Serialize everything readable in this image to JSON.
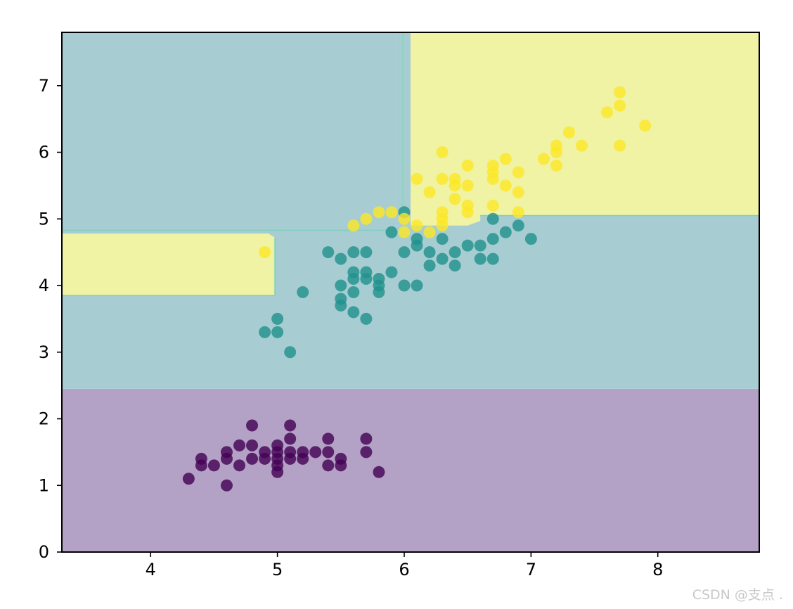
{
  "chart_data": {
    "type": "scatter",
    "title": "",
    "xlabel": "",
    "ylabel": "",
    "xlim": [
      3.3,
      8.8
    ],
    "ylim": [
      0,
      7.8
    ],
    "x_ticks": [
      4,
      5,
      6,
      7,
      8
    ],
    "y_ticks": [
      0,
      1,
      2,
      3,
      4,
      5,
      6,
      7
    ],
    "grid": false,
    "legend": "none",
    "colors": {
      "class0": "#440154",
      "class1": "#21918c",
      "class2": "#fde725",
      "region0": "#b4a2c6",
      "region1": "#a7cdd2",
      "region2": "#f0f2a4"
    },
    "decision_regions": [
      {
        "class": 0,
        "description": "y < 2.45"
      },
      {
        "class": 1,
        "description": "2.45 <= y <= 5.05 (excluding notch)"
      },
      {
        "class": 2,
        "description": "y > 5.05 plus x < 4.95 for y in [3.85, 4.8]; narrow class-1 strip near x = 6"
      }
    ],
    "series": [
      {
        "class": 0,
        "points": [
          [
            4.3,
            1.1
          ],
          [
            4.4,
            1.3
          ],
          [
            4.4,
            1.4
          ],
          [
            4.5,
            1.3
          ],
          [
            4.6,
            1.0
          ],
          [
            4.6,
            1.4
          ],
          [
            4.6,
            1.5
          ],
          [
            4.7,
            1.3
          ],
          [
            4.7,
            1.6
          ],
          [
            4.8,
            1.4
          ],
          [
            4.8,
            1.6
          ],
          [
            4.8,
            1.9
          ],
          [
            4.9,
            1.4
          ],
          [
            4.9,
            1.5
          ],
          [
            5.0,
            1.2
          ],
          [
            5.0,
            1.3
          ],
          [
            5.0,
            1.4
          ],
          [
            5.0,
            1.5
          ],
          [
            5.0,
            1.6
          ],
          [
            5.1,
            1.4
          ],
          [
            5.1,
            1.5
          ],
          [
            5.1,
            1.7
          ],
          [
            5.1,
            1.9
          ],
          [
            5.2,
            1.4
          ],
          [
            5.2,
            1.5
          ],
          [
            5.3,
            1.5
          ],
          [
            5.4,
            1.3
          ],
          [
            5.4,
            1.5
          ],
          [
            5.4,
            1.7
          ],
          [
            5.5,
            1.3
          ],
          [
            5.5,
            1.4
          ],
          [
            5.7,
            1.5
          ],
          [
            5.7,
            1.7
          ],
          [
            5.8,
            1.2
          ]
        ]
      },
      {
        "class": 1,
        "points": [
          [
            4.9,
            3.3
          ],
          [
            5.0,
            3.3
          ],
          [
            5.0,
            3.5
          ],
          [
            5.1,
            3.0
          ],
          [
            5.2,
            3.9
          ],
          [
            5.4,
            4.5
          ],
          [
            5.5,
            3.7
          ],
          [
            5.5,
            3.8
          ],
          [
            5.5,
            4.0
          ],
          [
            5.5,
            4.4
          ],
          [
            5.6,
            3.6
          ],
          [
            5.6,
            3.9
          ],
          [
            5.6,
            4.1
          ],
          [
            5.6,
            4.2
          ],
          [
            5.6,
            4.5
          ],
          [
            5.7,
            3.5
          ],
          [
            5.7,
            4.1
          ],
          [
            5.7,
            4.2
          ],
          [
            5.7,
            4.5
          ],
          [
            5.8,
            3.9
          ],
          [
            5.8,
            4.0
          ],
          [
            5.8,
            4.1
          ],
          [
            5.9,
            4.2
          ],
          [
            5.9,
            4.8
          ],
          [
            6.0,
            4.0
          ],
          [
            6.0,
            4.5
          ],
          [
            6.0,
            5.1
          ],
          [
            6.1,
            4.0
          ],
          [
            6.1,
            4.6
          ],
          [
            6.1,
            4.7
          ],
          [
            6.2,
            4.3
          ],
          [
            6.2,
            4.5
          ],
          [
            6.3,
            4.4
          ],
          [
            6.3,
            4.7
          ],
          [
            6.4,
            4.3
          ],
          [
            6.4,
            4.5
          ],
          [
            6.5,
            4.6
          ],
          [
            6.6,
            4.4
          ],
          [
            6.6,
            4.6
          ],
          [
            6.7,
            4.4
          ],
          [
            6.7,
            4.7
          ],
          [
            6.7,
            5.0
          ],
          [
            6.8,
            4.8
          ],
          [
            6.9,
            4.9
          ],
          [
            7.0,
            4.7
          ]
        ]
      },
      {
        "class": 2,
        "points": [
          [
            4.9,
            4.5
          ],
          [
            5.6,
            4.9
          ],
          [
            5.7,
            5.0
          ],
          [
            5.8,
            5.1
          ],
          [
            5.9,
            5.1
          ],
          [
            6.0,
            4.8
          ],
          [
            6.0,
            5.0
          ],
          [
            6.1,
            4.9
          ],
          [
            6.1,
            5.6
          ],
          [
            6.2,
            4.8
          ],
          [
            6.2,
            5.4
          ],
          [
            6.3,
            4.9
          ],
          [
            6.3,
            5.0
          ],
          [
            6.3,
            5.1
          ],
          [
            6.3,
            5.6
          ],
          [
            6.3,
            6.0
          ],
          [
            6.4,
            5.3
          ],
          [
            6.4,
            5.5
          ],
          [
            6.4,
            5.6
          ],
          [
            6.5,
            5.1
          ],
          [
            6.5,
            5.2
          ],
          [
            6.5,
            5.5
          ],
          [
            6.5,
            5.8
          ],
          [
            6.7,
            5.2
          ],
          [
            6.7,
            5.6
          ],
          [
            6.7,
            5.7
          ],
          [
            6.7,
            5.8
          ],
          [
            6.8,
            5.5
          ],
          [
            6.8,
            5.9
          ],
          [
            6.9,
            5.1
          ],
          [
            6.9,
            5.4
          ],
          [
            6.9,
            5.7
          ],
          [
            7.1,
            5.9
          ],
          [
            7.2,
            5.8
          ],
          [
            7.2,
            6.0
          ],
          [
            7.2,
            6.1
          ],
          [
            7.3,
            6.3
          ],
          [
            7.4,
            6.1
          ],
          [
            7.6,
            6.6
          ],
          [
            7.7,
            6.1
          ],
          [
            7.7,
            6.7
          ],
          [
            7.7,
            6.9
          ],
          [
            7.9,
            6.4
          ]
        ]
      }
    ]
  },
  "watermark": "CSDN @支点 ."
}
